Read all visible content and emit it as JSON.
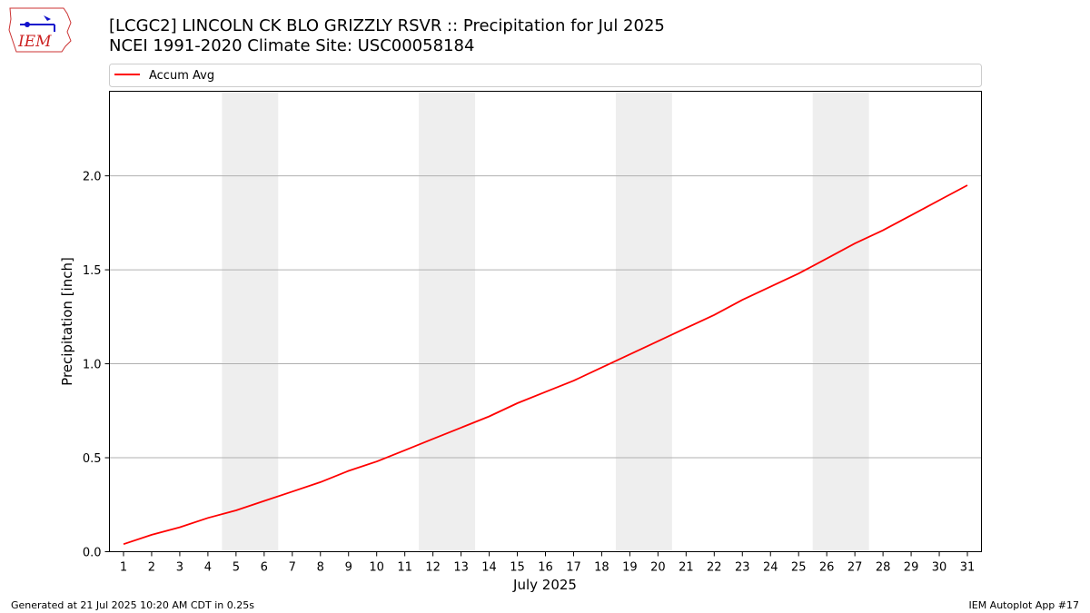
{
  "header": {
    "title_line1": "[LCGC2] LINCOLN CK BLO GRIZZLY RSVR :: Precipitation for Jul 2025",
    "title_line2": "NCEI 1991-2020 Climate Site: USC00058184",
    "logo_text": "IEM"
  },
  "footer": {
    "generated": "Generated at 21 Jul 2025 10:20 AM CDT in 0.25s",
    "app": "IEM Autoplot App #17"
  },
  "chart_data": {
    "type": "line",
    "xlabel": "July 2025",
    "ylabel": "Precipitation [inch]",
    "ylim": [
      0,
      2.45
    ],
    "yticks": [
      0.0,
      0.5,
      1.0,
      1.5,
      2.0
    ],
    "ytick_labels": [
      "0.0",
      "0.5",
      "1.0",
      "1.5",
      "2.0"
    ],
    "x": [
      1,
      2,
      3,
      4,
      5,
      6,
      7,
      8,
      9,
      10,
      11,
      12,
      13,
      14,
      15,
      16,
      17,
      18,
      19,
      20,
      21,
      22,
      23,
      24,
      25,
      26,
      27,
      28,
      29,
      30,
      31
    ],
    "x_tick_labels": [
      "1",
      "2",
      "3",
      "4",
      "5",
      "6",
      "7",
      "8",
      "9",
      "10",
      "11",
      "12",
      "13",
      "14",
      "15",
      "16",
      "17",
      "18",
      "19",
      "20",
      "21",
      "22",
      "23",
      "24",
      "25",
      "26",
      "27",
      "28",
      "29",
      "30",
      "31"
    ],
    "xlim": [
      0.5,
      31.5
    ],
    "grid": "horizontal",
    "legend": "top",
    "weekend_bands": [
      [
        5,
        6
      ],
      [
        12,
        13
      ],
      [
        19,
        20
      ],
      [
        26,
        27
      ]
    ],
    "series": [
      {
        "name": "Accum Avg",
        "color": "#ff0000",
        "values": [
          0.04,
          0.09,
          0.13,
          0.18,
          0.22,
          0.27,
          0.32,
          0.37,
          0.43,
          0.48,
          0.54,
          0.6,
          0.66,
          0.72,
          0.79,
          0.85,
          0.91,
          0.98,
          1.05,
          1.12,
          1.19,
          1.26,
          1.34,
          1.41,
          1.48,
          1.56,
          1.64,
          1.71,
          1.79,
          1.87,
          1.95
        ]
      }
    ]
  }
}
